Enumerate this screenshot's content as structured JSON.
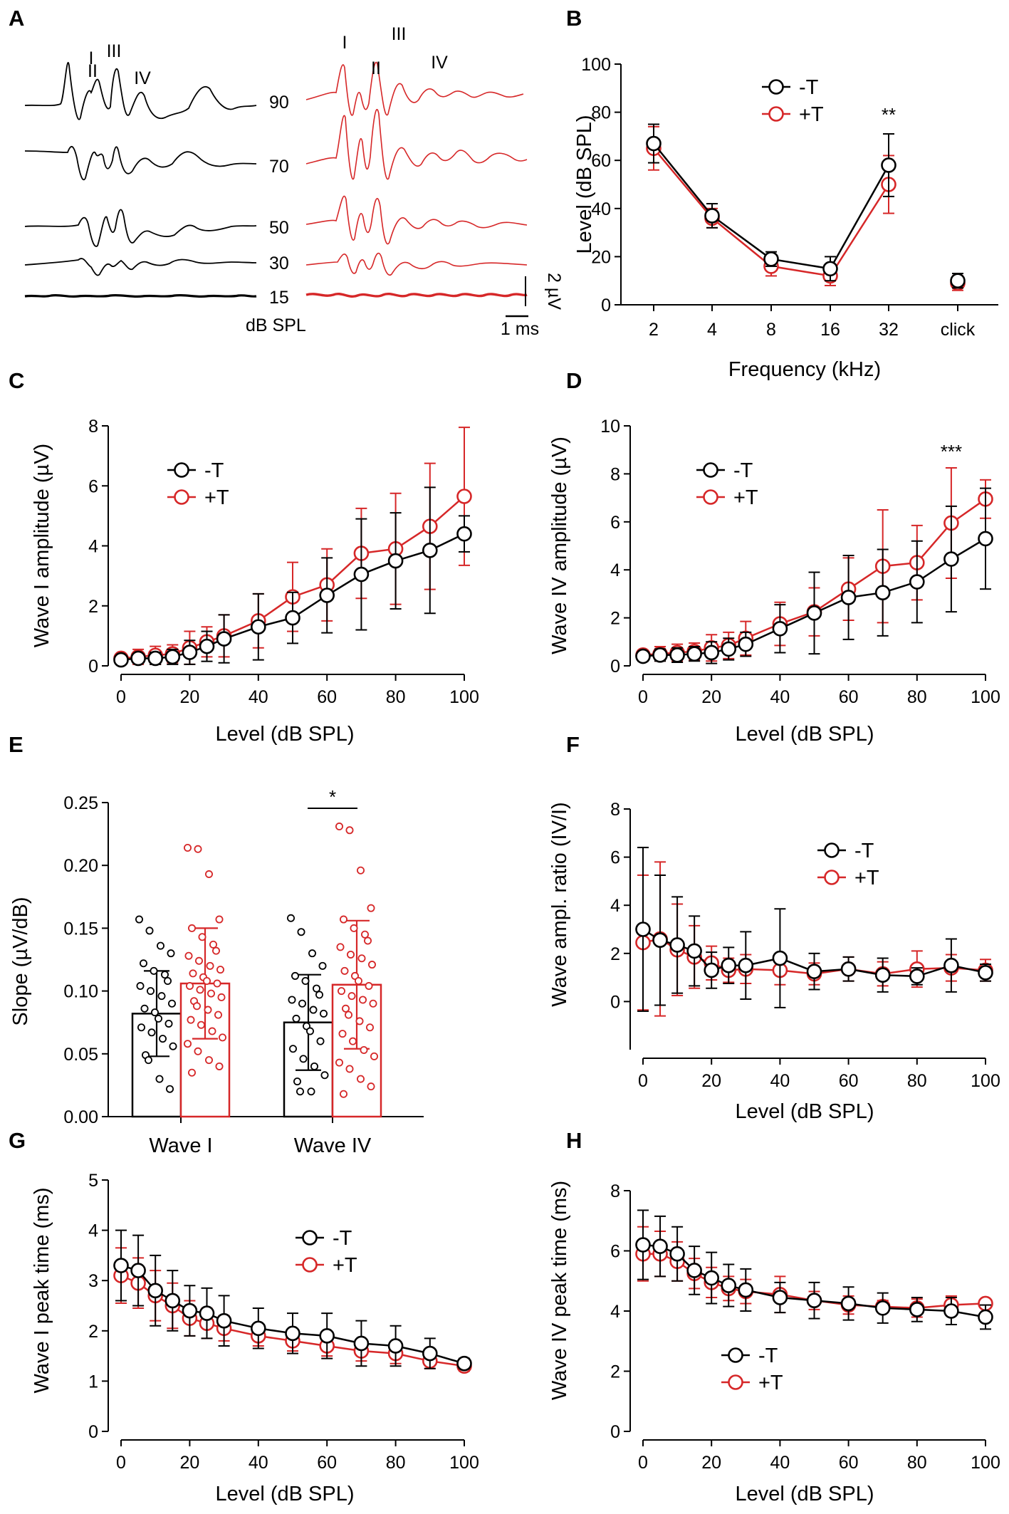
{
  "colors": {
    "minusT": "#000000",
    "plusT": "#d62728"
  },
  "panelA": {
    "label": "A",
    "levels": [
      "90",
      "70",
      "50",
      "30",
      "15"
    ],
    "unit_label": "dB SPL",
    "peaks_black": [
      "I",
      "II",
      "III",
      "IV"
    ],
    "peaks_red": [
      "I",
      "II",
      "III",
      "IV"
    ],
    "scale_y": "2 µV",
    "scale_x": "1 ms"
  },
  "chart_data": [
    {
      "id": "B",
      "label": "B",
      "type": "line",
      "xlabel": "Frequency (kHz)",
      "ylabel": "Level (dB SPL)",
      "categories": [
        "2",
        "4",
        "8",
        "16",
        "32",
        "click"
      ],
      "ylim": [
        0,
        100
      ],
      "yticks": [
        "0",
        "20",
        "40",
        "60",
        "80",
        "100"
      ],
      "series": [
        {
          "name": "-T",
          "color": "#000000",
          "values": [
            67,
            37,
            19,
            15,
            58,
            10
          ],
          "err": [
            8,
            5,
            3,
            5,
            13,
            3
          ]
        },
        {
          "name": "+T",
          "color": "#d62728",
          "values": [
            65,
            36,
            16,
            12,
            50,
            9
          ],
          "err": [
            9,
            4,
            4,
            4,
            12,
            3
          ]
        }
      ],
      "annotations": [
        {
          "text": "**",
          "category": "32"
        }
      ]
    },
    {
      "id": "C",
      "label": "C",
      "type": "line",
      "xlabel": "Level (dB SPL)",
      "ylabel": "Wave I amplitude (µV)",
      "xlim": [
        0,
        100
      ],
      "xticks": [
        "0",
        "20",
        "40",
        "60",
        "80",
        "100"
      ],
      "ylim": [
        0,
        8
      ],
      "yticks": [
        "0",
        "2",
        "4",
        "6",
        "8"
      ],
      "x": [
        0,
        5,
        10,
        15,
        20,
        25,
        30,
        40,
        50,
        60,
        70,
        80,
        90,
        100
      ],
      "series": [
        {
          "name": "-T",
          "color": "#000000",
          "values": [
            0.2,
            0.25,
            0.25,
            0.3,
            0.45,
            0.65,
            0.9,
            1.3,
            1.6,
            2.35,
            3.05,
            3.5,
            3.85,
            4.4
          ],
          "err": [
            0.1,
            0.15,
            0.2,
            0.25,
            0.4,
            0.5,
            0.8,
            1.1,
            0.85,
            1.25,
            1.85,
            1.6,
            2.1,
            0.6
          ]
        },
        {
          "name": "+T",
          "color": "#d62728",
          "values": [
            0.25,
            0.3,
            0.35,
            0.4,
            0.6,
            0.8,
            1.0,
            1.5,
            2.3,
            2.7,
            3.75,
            3.9,
            4.65,
            5.65
          ],
          "err": [
            0.15,
            0.25,
            0.3,
            0.3,
            0.55,
            0.5,
            0.7,
            0.9,
            1.15,
            1.2,
            1.5,
            1.85,
            2.1,
            2.3
          ]
        }
      ]
    },
    {
      "id": "D",
      "label": "D",
      "type": "line",
      "xlabel": "Level (dB SPL)",
      "ylabel": "Wave IV amplitude (µV)",
      "xlim": [
        0,
        100
      ],
      "xticks": [
        "0",
        "20",
        "40",
        "60",
        "80",
        "100"
      ],
      "ylim": [
        0,
        10
      ],
      "yticks": [
        "0",
        "2",
        "4",
        "6",
        "8",
        "10"
      ],
      "x": [
        0,
        5,
        10,
        15,
        20,
        25,
        30,
        40,
        50,
        60,
        70,
        80,
        90,
        100
      ],
      "series": [
        {
          "name": "-T",
          "color": "#000000",
          "values": [
            0.4,
            0.45,
            0.45,
            0.5,
            0.55,
            0.7,
            0.9,
            1.55,
            2.2,
            2.85,
            3.05,
            3.5,
            4.45,
            5.3
          ],
          "err": [
            0.2,
            0.25,
            0.3,
            0.3,
            0.45,
            0.45,
            0.5,
            1.0,
            1.7,
            1.75,
            1.8,
            1.7,
            2.2,
            2.1
          ]
        },
        {
          "name": "+T",
          "color": "#d62728",
          "values": [
            0.45,
            0.5,
            0.55,
            0.6,
            0.75,
            0.85,
            1.15,
            1.75,
            2.25,
            3.2,
            4.15,
            4.3,
            5.95,
            6.95
          ],
          "err": [
            0.2,
            0.3,
            0.35,
            0.35,
            0.55,
            0.55,
            0.7,
            0.9,
            1.0,
            1.3,
            2.35,
            1.55,
            2.3,
            0.8
          ]
        }
      ],
      "annotations": [
        {
          "text": "***",
          "x": 90
        }
      ]
    },
    {
      "id": "E",
      "label": "E",
      "type": "bar",
      "ylabel": "Slope (µV/dB)",
      "categories": [
        "Wave I",
        "Wave IV"
      ],
      "ylim": [
        0,
        0.25
      ],
      "yticks": [
        "0.00",
        "0.05",
        "0.10",
        "0.15",
        "0.20",
        "0.25"
      ],
      "series": [
        {
          "name": "-T",
          "color": "#000000",
          "values": [
            0.082,
            0.075
          ],
          "sd": [
            0.034,
            0.038
          ],
          "points": [
            [
              0.157,
              0.148,
              0.136,
              0.13,
              0.122,
              0.116,
              0.113,
              0.108,
              0.104,
              0.1,
              0.096,
              0.09,
              0.086,
              0.083,
              0.078,
              0.074,
              0.071,
              0.067,
              0.062,
              0.056,
              0.049,
              0.045,
              0.03,
              0.022
            ],
            [
              0.158,
              0.147,
              0.13,
              0.12,
              0.112,
              0.108,
              0.102,
              0.097,
              0.093,
              0.09,
              0.085,
              0.082,
              0.078,
              0.072,
              0.068,
              0.06,
              0.054,
              0.046,
              0.04,
              0.033,
              0.028,
              0.02,
              0.02
            ]
          ]
        },
        {
          "name": "+T",
          "color": "#d62728",
          "values": [
            0.106,
            0.105
          ],
          "sd": [
            0.044,
            0.051
          ],
          "points": [
            [
              0.214,
              0.213,
              0.193,
              0.157,
              0.15,
              0.143,
              0.137,
              0.132,
              0.128,
              0.124,
              0.12,
              0.117,
              0.114,
              0.111,
              0.108,
              0.106,
              0.104,
              0.101,
              0.098,
              0.095,
              0.092,
              0.088,
              0.085,
              0.081,
              0.077,
              0.073,
              0.068,
              0.063,
              0.058,
              0.052,
              0.045,
              0.04,
              0.035
            ],
            [
              0.231,
              0.228,
              0.196,
              0.166,
              0.157,
              0.15,
              0.145,
              0.14,
              0.135,
              0.129,
              0.126,
              0.121,
              0.116,
              0.112,
              0.108,
              0.104,
              0.1,
              0.096,
              0.093,
              0.09,
              0.086,
              0.081,
              0.076,
              0.071,
              0.066,
              0.06,
              0.053,
              0.048,
              0.043,
              0.038,
              0.03,
              0.024,
              0.018
            ]
          ]
        }
      ],
      "annotations": [
        {
          "text": "*",
          "between": "Wave IV -T and +T"
        }
      ]
    },
    {
      "id": "F",
      "label": "F",
      "type": "line",
      "xlabel": "Level (dB SPL)",
      "ylabel": "Wave ampl. ratio (IV/I)",
      "xlim": [
        0,
        100
      ],
      "xticks": [
        "0",
        "20",
        "40",
        "60",
        "80",
        "100"
      ],
      "ylim": [
        -2,
        8
      ],
      "yticks": [
        "0",
        "2",
        "4",
        "6",
        "8"
      ],
      "x": [
        0,
        5,
        10,
        15,
        20,
        25,
        30,
        40,
        50,
        60,
        70,
        80,
        90,
        100
      ],
      "series": [
        {
          "name": "-T",
          "color": "#000000",
          "values": [
            3.0,
            2.55,
            2.35,
            2.1,
            1.3,
            1.5,
            1.5,
            1.8,
            1.25,
            1.35,
            1.1,
            1.05,
            1.5,
            1.2
          ],
          "err": [
            3.4,
            2.7,
            2.0,
            1.45,
            0.75,
            0.75,
            1.4,
            2.05,
            0.75,
            0.5,
            0.7,
            0.35,
            1.1,
            0.35
          ]
        },
        {
          "name": "+T",
          "color": "#d62728",
          "values": [
            2.45,
            2.6,
            2.15,
            1.85,
            1.6,
            1.3,
            1.35,
            1.3,
            1.15,
            1.35,
            1.15,
            1.35,
            1.4,
            1.3
          ],
          "err": [
            2.8,
            3.2,
            1.9,
            1.3,
            0.7,
            0.5,
            0.6,
            0.6,
            0.45,
            0.5,
            0.5,
            0.75,
            0.55,
            0.45
          ]
        }
      ]
    },
    {
      "id": "G",
      "label": "G",
      "type": "line",
      "xlabel": "Level (dB SPL)",
      "ylabel": "Wave I peak time (ms)",
      "xlim": [
        0,
        100
      ],
      "xticks": [
        "0",
        "20",
        "40",
        "60",
        "80",
        "100"
      ],
      "ylim": [
        0,
        5
      ],
      "yticks": [
        "0",
        "1",
        "2",
        "3",
        "4",
        "5"
      ],
      "x": [
        0,
        5,
        10,
        15,
        20,
        25,
        30,
        40,
        50,
        60,
        70,
        80,
        90,
        100
      ],
      "series": [
        {
          "name": "-T",
          "color": "#000000",
          "values": [
            3.3,
            3.2,
            2.8,
            2.6,
            2.4,
            2.35,
            2.2,
            2.05,
            1.95,
            1.9,
            1.75,
            1.7,
            1.55,
            1.35
          ],
          "err": [
            0.7,
            0.7,
            0.7,
            0.6,
            0.5,
            0.5,
            0.5,
            0.4,
            0.4,
            0.45,
            0.45,
            0.4,
            0.3,
            0.1
          ]
        },
        {
          "name": "+T",
          "color": "#d62728",
          "values": [
            3.1,
            2.95,
            2.7,
            2.5,
            2.25,
            2.15,
            2.05,
            1.9,
            1.8,
            1.7,
            1.6,
            1.55,
            1.4,
            1.3
          ],
          "err": [
            0.55,
            0.5,
            0.5,
            0.45,
            0.35,
            0.3,
            0.25,
            0.2,
            0.2,
            0.2,
            0.2,
            0.2,
            0.15,
            0.1
          ]
        }
      ]
    },
    {
      "id": "H",
      "label": "H",
      "type": "line",
      "xlabel": "Level (dB SPL)",
      "ylabel": "Wave IV peak time (ms)",
      "xlim": [
        0,
        100
      ],
      "xticks": [
        "0",
        "20",
        "40",
        "60",
        "80",
        "100"
      ],
      "ylim": [
        0,
        8
      ],
      "yticks": [
        "0",
        "2",
        "4",
        "6",
        "8"
      ],
      "x": [
        0,
        5,
        10,
        15,
        20,
        25,
        30,
        40,
        50,
        60,
        70,
        80,
        90,
        100
      ],
      "series": [
        {
          "name": "-T",
          "color": "#000000",
          "values": [
            6.2,
            6.15,
            5.9,
            5.35,
            5.1,
            4.85,
            4.7,
            4.45,
            4.35,
            4.25,
            4.1,
            4.05,
            4.0,
            3.8
          ],
          "err": [
            1.15,
            1.0,
            0.9,
            0.8,
            0.85,
            0.7,
            0.7,
            0.5,
            0.6,
            0.55,
            0.5,
            0.4,
            0.45,
            0.4
          ]
        },
        {
          "name": "+T",
          "color": "#d62728",
          "values": [
            5.9,
            5.9,
            5.65,
            5.25,
            4.95,
            4.75,
            4.65,
            4.55,
            4.35,
            4.2,
            4.15,
            4.1,
            4.2,
            4.25
          ],
          "err": [
            0.9,
            0.75,
            0.65,
            0.5,
            0.5,
            0.4,
            0.4,
            0.6,
            0.3,
            0.3,
            0.2,
            0.3,
            0.3,
            0.15
          ]
        }
      ]
    }
  ]
}
